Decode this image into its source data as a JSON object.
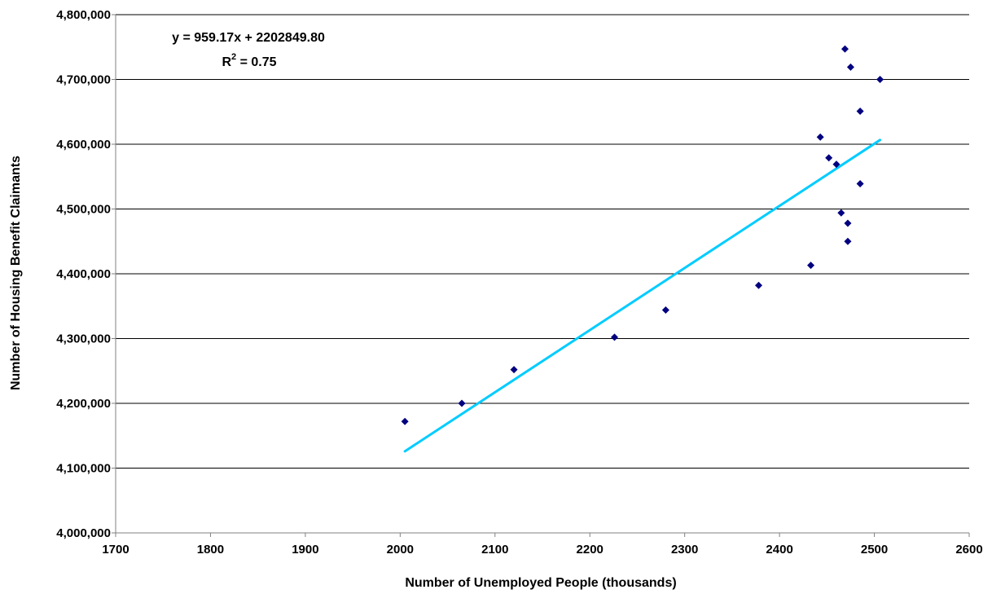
{
  "chart_data": {
    "type": "scatter",
    "title": "",
    "xlabel": "Number of Unemployed People (thousands)",
    "ylabel": "Number of Housing Benefit Claimants",
    "xlim": [
      1700,
      2600
    ],
    "ylim": [
      4000000,
      4800000
    ],
    "x_ticks": [
      1700,
      1800,
      1900,
      2000,
      2100,
      2200,
      2300,
      2400,
      2500,
      2600
    ],
    "y_ticks": [
      4000000,
      4100000,
      4200000,
      4300000,
      4400000,
      4500000,
      4600000,
      4700000,
      4800000
    ],
    "x_tick_labels": [
      "1700",
      "1800",
      "1900",
      "2000",
      "2100",
      "2200",
      "2300",
      "2400",
      "2500",
      "2600"
    ],
    "y_tick_labels": [
      "4,000,000",
      "4,100,000",
      "4,200,000",
      "4,300,000",
      "4,400,000",
      "4,500,000",
      "4,600,000",
      "4,700,000",
      "4,800,000"
    ],
    "grid": "horizontal",
    "legend": "none",
    "points": [
      {
        "x": 2005,
        "y": 4172000
      },
      {
        "x": 2065,
        "y": 4200000
      },
      {
        "x": 2120,
        "y": 4252000
      },
      {
        "x": 2226,
        "y": 4302000
      },
      {
        "x": 2280,
        "y": 4344000
      },
      {
        "x": 2378,
        "y": 4382000
      },
      {
        "x": 2433,
        "y": 4413000
      },
      {
        "x": 2443,
        "y": 4611000
      },
      {
        "x": 2452,
        "y": 4579000
      },
      {
        "x": 2460,
        "y": 4569000
      },
      {
        "x": 2465,
        "y": 4494000
      },
      {
        "x": 2469,
        "y": 4747000
      },
      {
        "x": 2472,
        "y": 4478000
      },
      {
        "x": 2472,
        "y": 4450000
      },
      {
        "x": 2475,
        "y": 4719000
      },
      {
        "x": 2485,
        "y": 4651000
      },
      {
        "x": 2485,
        "y": 4539000
      },
      {
        "x": 2506,
        "y": 4700000
      }
    ],
    "trendline": {
      "slope": 959.17,
      "intercept": 2202849.8,
      "x_range": [
        2005,
        2506
      ]
    },
    "equation_text": "y = 959.17x + 2202849.80",
    "r2_prefix": "R",
    "r2_sup": "2",
    "r2_suffix": " = 0.75",
    "colors": {
      "points": "#000080",
      "trendline": "#00CCFF",
      "grid": "#000000",
      "axis": "#808080"
    }
  }
}
